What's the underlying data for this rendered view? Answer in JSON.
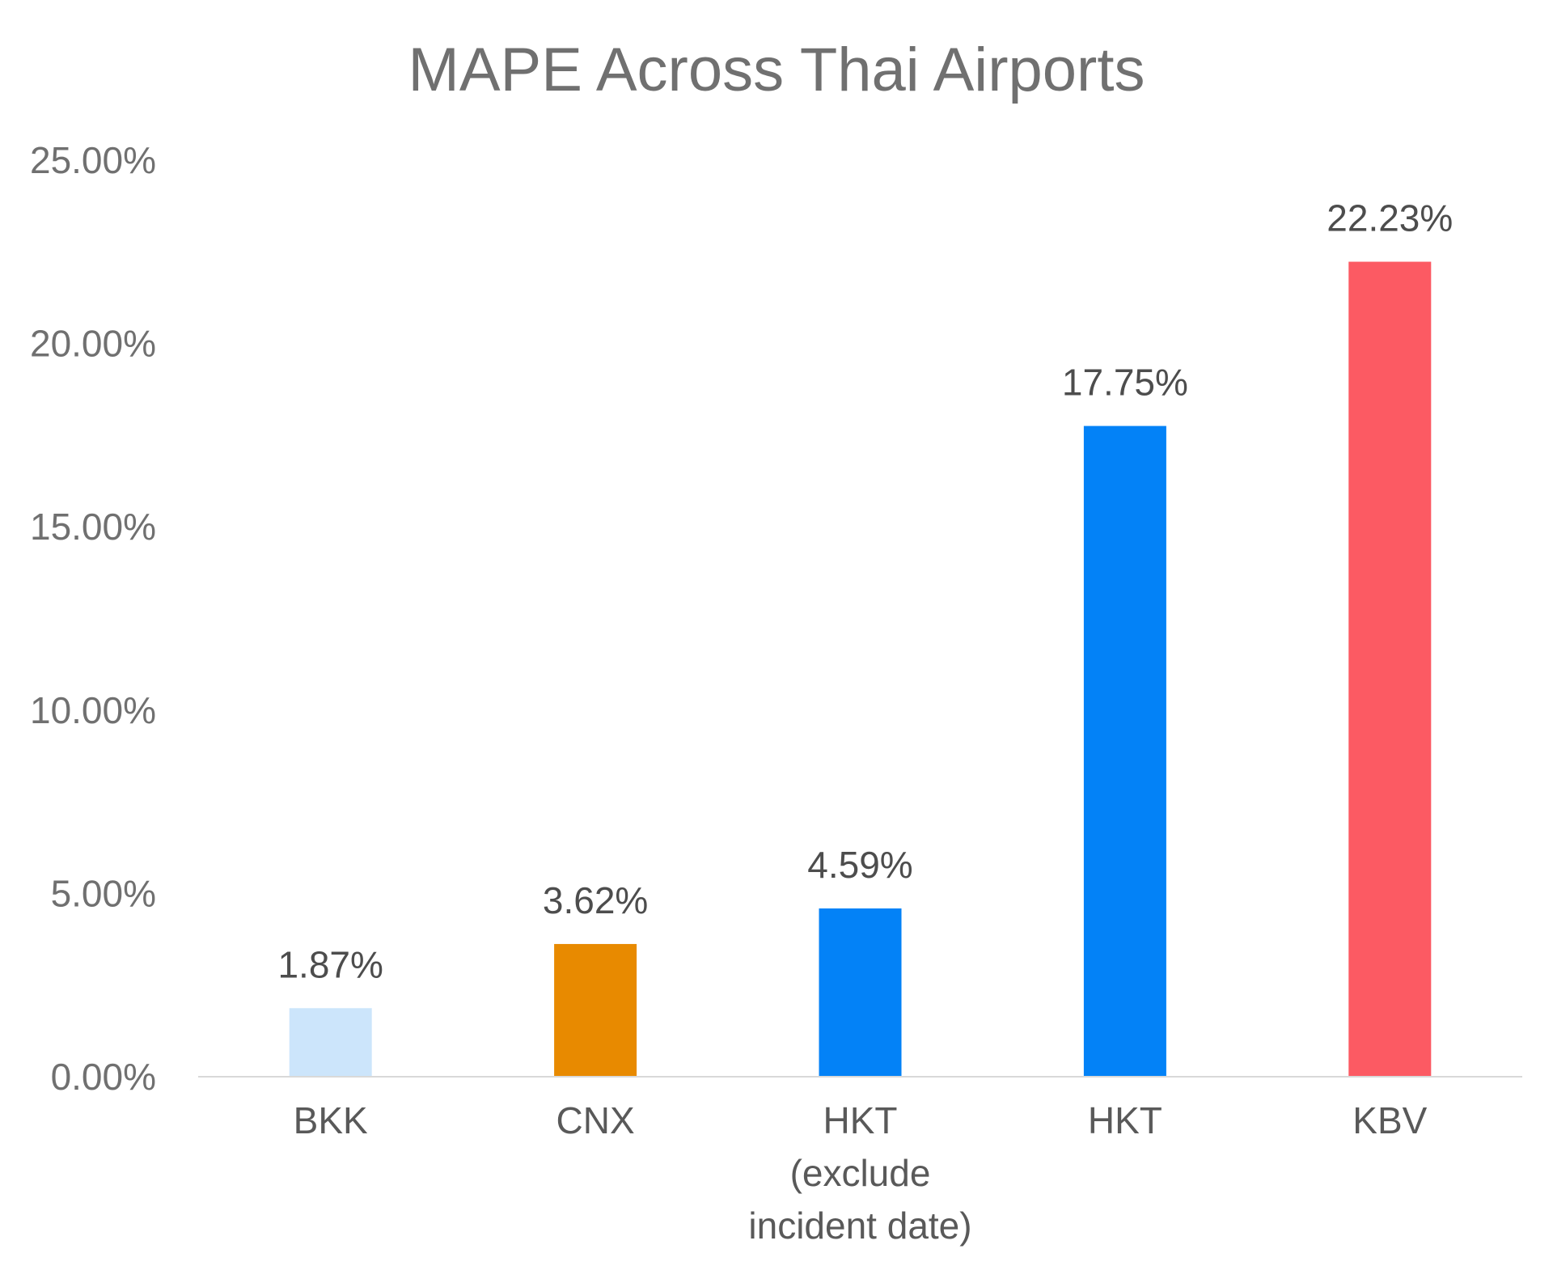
{
  "chart_data": {
    "type": "bar",
    "title": "MAPE Across Thai Airports",
    "xlabel": "",
    "ylabel": "",
    "categories": [
      [
        "BKK"
      ],
      [
        "CNX"
      ],
      [
        "HKT",
        "(exclude",
        "incident date)"
      ],
      [
        "HKT"
      ],
      [
        "KBV"
      ]
    ],
    "values": [
      1.87,
      3.62,
      4.59,
      17.75,
      22.23
    ],
    "value_labels": [
      "1.87%",
      "3.62%",
      "4.59%",
      "17.75%",
      "22.23%"
    ],
    "bar_colors": [
      "#cce5fb",
      "#e88a00",
      "#0382f7",
      "#0382f7",
      "#fc5a63"
    ],
    "ylim": [
      0,
      25
    ],
    "yticks": [
      0,
      5,
      10,
      15,
      20,
      25
    ],
    "ytick_labels": [
      "0.00%",
      "5.00%",
      "10.00%",
      "15.00%",
      "20.00%",
      "25.00%"
    ],
    "grid": false,
    "legend": "none",
    "colors": {
      "axis": "#d9d9d9",
      "text": "#707070"
    }
  }
}
